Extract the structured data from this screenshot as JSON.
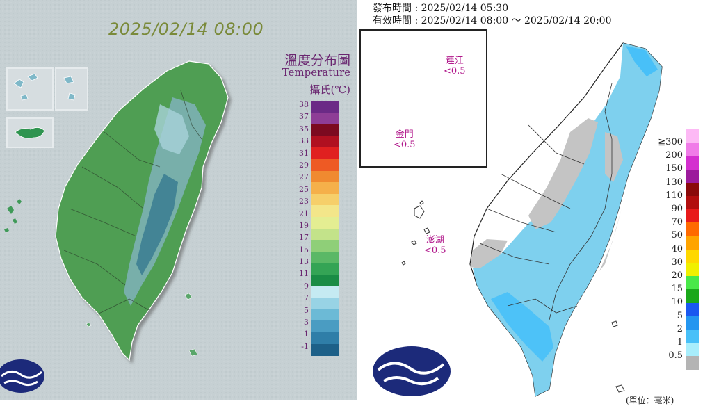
{
  "left_map": {
    "datetime": "2025/02/14 08:00",
    "legend_title_zh": "溫度分布圖",
    "legend_title_en": "Temperature",
    "legend_unit": "攝氏(℃)",
    "legend_labels": [
      "38",
      "37",
      "35",
      "33",
      "31",
      "29",
      "27",
      "25",
      "23",
      "21",
      "19",
      "17",
      "15",
      "13",
      "11",
      "9",
      "7",
      "5",
      "3",
      "1",
      "-1"
    ],
    "legend_colors": [
      "#6b2a86",
      "#8e3d96",
      "#7c0a20",
      "#b01020",
      "#e02020",
      "#ee5a24",
      "#f08a30",
      "#f5b04a",
      "#f6cf6a",
      "#f3e68a",
      "#e4ee92",
      "#c3e38a",
      "#8fcf78",
      "#5ab866",
      "#34a455",
      "#1a8c45",
      "#c5eaf2",
      "#98d3e5",
      "#6cbad6",
      "#4a9cc2",
      "#2f7ea8",
      "#1d6088"
    ]
  },
  "right_map": {
    "issued_label": "發布時間 : 2025/02/14 05:30",
    "valid_label": "有效時間 : 2025/02/14 08:00 ～ 2025/02/14 20:00",
    "inset_labels": [
      {
        "name": "連江",
        "value": "<0.5"
      },
      {
        "name": "金門",
        "value": "<0.5"
      }
    ],
    "penghu_label": {
      "name": "澎湖",
      "value": "<0.5"
    },
    "legend_labels": [
      "≧300",
      "200",
      "150",
      "130",
      "110",
      "90",
      "70",
      "50",
      "40",
      "30",
      "20",
      "15",
      "10",
      "5",
      "2",
      "1",
      "0.5"
    ],
    "legend_colors": [
      "#fdb9f5",
      "#f07ce8",
      "#d42fcf",
      "#9c1b9c",
      "#8a0a0a",
      "#b20e0e",
      "#e81a1a",
      "#ff6a00",
      "#ffa400",
      "#ffd800",
      "#f0f000",
      "#48e848",
      "#1aa81a",
      "#1a58f0",
      "#2496f0",
      "#48c0f8",
      "#a8eefc",
      "#b4b4b4"
    ],
    "unit_label": "(單位：毫米)"
  },
  "colors": {
    "land_green": "#4f9e52",
    "mountain_teal": "#5e98a4",
    "rain_blue": "#7ed0ee",
    "rain_grey": "#c4c4c4"
  }
}
